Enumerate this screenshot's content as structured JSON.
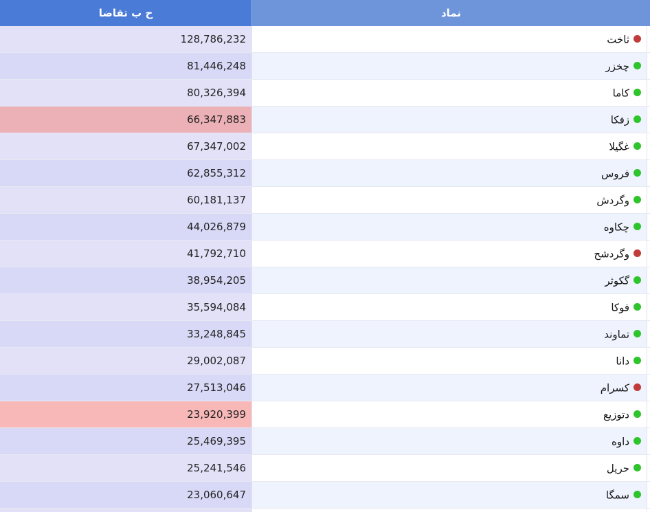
{
  "header": {
    "value_col": "ح ب تقاضا",
    "symbol_col": "نماد"
  },
  "colors": {
    "up": "#2ec42b",
    "down": "#c23b3b",
    "highlight_red": "#ecb1b7",
    "highlight_pink": "#f8b8b8"
  },
  "rows": [
    {
      "symbol": "ثاخت",
      "value": "128,786,232",
      "status": "down",
      "highlight": ""
    },
    {
      "symbol": "چخزر",
      "value": "81,446,248",
      "status": "up",
      "highlight": ""
    },
    {
      "symbol": "کاما",
      "value": "80,326,394",
      "status": "up",
      "highlight": ""
    },
    {
      "symbol": "زفکا",
      "value": "66,347,883",
      "status": "up",
      "highlight": "red"
    },
    {
      "symbol": "غگیلا",
      "value": "67,347,002",
      "status": "up",
      "highlight": ""
    },
    {
      "symbol": "فروس",
      "value": "62,855,312",
      "status": "up",
      "highlight": ""
    },
    {
      "symbol": "وگردش",
      "value": "60,181,137",
      "status": "up",
      "highlight": ""
    },
    {
      "symbol": "چکاوه",
      "value": "44,026,879",
      "status": "up",
      "highlight": ""
    },
    {
      "symbol": "وگردشح",
      "value": "41,792,710",
      "status": "down",
      "highlight": ""
    },
    {
      "symbol": "گکوثر",
      "value": "38,954,205",
      "status": "up",
      "highlight": ""
    },
    {
      "symbol": "فوکا",
      "value": "35,594,084",
      "status": "up",
      "highlight": ""
    },
    {
      "symbol": "تماوند",
      "value": "33,248,845",
      "status": "up",
      "highlight": ""
    },
    {
      "symbol": "دانا",
      "value": "29,002,087",
      "status": "up",
      "highlight": ""
    },
    {
      "symbol": "کسرام",
      "value": "27,513,046",
      "status": "down",
      "highlight": ""
    },
    {
      "symbol": "دتوزیع",
      "value": "23,920,399",
      "status": "up",
      "highlight": "pink"
    },
    {
      "symbol": "داوه",
      "value": "25,469,395",
      "status": "up",
      "highlight": ""
    },
    {
      "symbol": "حریل",
      "value": "25,241,546",
      "status": "up",
      "highlight": ""
    },
    {
      "symbol": "سمگا",
      "value": "23,060,647",
      "status": "up",
      "highlight": ""
    },
    {
      "symbol": "",
      "value": "",
      "status": "",
      "highlight": ""
    }
  ]
}
